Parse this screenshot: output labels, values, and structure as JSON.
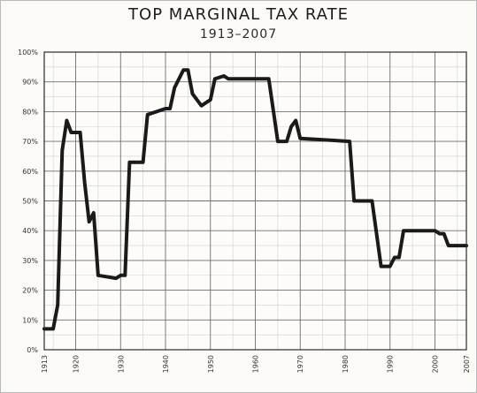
{
  "title": "TOP MARGINAL TAX RATE",
  "subtitle": "1913–2007",
  "chart_data": {
    "type": "line",
    "title": "TOP MARGINAL TAX RATE",
    "subtitle": "1913–2007",
    "xlabel": "",
    "ylabel": "",
    "xlim": [
      1913,
      2007
    ],
    "ylim": [
      0,
      100
    ],
    "grid": true,
    "x_ticks": [
      "1913",
      "1920",
      "1930",
      "1940",
      "1950",
      "1960",
      "1970",
      "1980",
      "1990",
      "2000",
      "2007"
    ],
    "y_ticks": [
      "0%",
      "10%",
      "20%",
      "30%",
      "40%",
      "50%",
      "60%",
      "70%",
      "80%",
      "90%",
      "100%"
    ],
    "line_color": "#1a1a1a",
    "series": [
      {
        "points": [
          [
            1913,
            7
          ],
          [
            1915,
            7
          ],
          [
            1916,
            15
          ],
          [
            1917,
            67
          ],
          [
            1918,
            77
          ],
          [
            1919,
            73
          ],
          [
            1921,
            73
          ],
          [
            1922,
            56
          ],
          [
            1923,
            43
          ],
          [
            1924,
            46
          ],
          [
            1925,
            25
          ],
          [
            1929,
            24
          ],
          [
            1930,
            25
          ],
          [
            1931,
            25
          ],
          [
            1932,
            63
          ],
          [
            1935,
            63
          ],
          [
            1936,
            79
          ],
          [
            1940,
            81
          ],
          [
            1941,
            81
          ],
          [
            1942,
            88
          ],
          [
            1944,
            94
          ],
          [
            1945,
            94
          ],
          [
            1946,
            86
          ],
          [
            1948,
            82
          ],
          [
            1950,
            84
          ],
          [
            1951,
            91
          ],
          [
            1953,
            92
          ],
          [
            1954,
            91
          ],
          [
            1963,
            91
          ],
          [
            1965,
            70
          ],
          [
            1967,
            70
          ],
          [
            1968,
            75
          ],
          [
            1969,
            77
          ],
          [
            1970,
            71
          ],
          [
            1981,
            70
          ],
          [
            1982,
            50
          ],
          [
            1986,
            50
          ],
          [
            1987,
            39
          ],
          [
            1988,
            28
          ],
          [
            1990,
            28
          ],
          [
            1991,
            31
          ],
          [
            1992,
            31
          ],
          [
            1993,
            40
          ],
          [
            2000,
            40
          ],
          [
            2001,
            39
          ],
          [
            2002,
            39
          ],
          [
            2003,
            35
          ],
          [
            2007,
            35
          ]
        ]
      }
    ]
  }
}
